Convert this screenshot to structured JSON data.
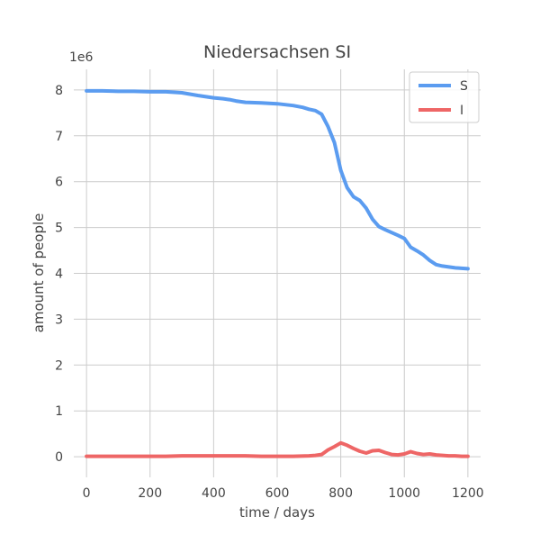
{
  "chart_data": {
    "type": "line",
    "title": "Niedersachsen SI",
    "xlabel": "time / days",
    "ylabel": "amount of people",
    "y_offset_label": "1e6",
    "xlim": [
      -40,
      1240
    ],
    "ylim": [
      -0.45,
      8.45
    ],
    "xticks": [
      0,
      200,
      400,
      600,
      800,
      1000,
      1200
    ],
    "yticks": [
      0,
      1,
      2,
      3,
      4,
      5,
      6,
      7,
      8
    ],
    "grid": true,
    "legend_position": "top-right",
    "series": [
      {
        "name": "S",
        "color": "#5b9cf0",
        "x": [
          0,
          50,
          100,
          150,
          200,
          250,
          300,
          350,
          400,
          430,
          450,
          470,
          500,
          550,
          600,
          650,
          680,
          700,
          720,
          740,
          760,
          780,
          800,
          820,
          840,
          860,
          880,
          900,
          920,
          940,
          960,
          980,
          1000,
          1020,
          1040,
          1060,
          1080,
          1100,
          1120,
          1140,
          1160,
          1180,
          1200
        ],
        "values": [
          7.98,
          7.98,
          7.97,
          7.97,
          7.96,
          7.96,
          7.94,
          7.88,
          7.83,
          7.81,
          7.79,
          7.76,
          7.73,
          7.72,
          7.7,
          7.66,
          7.62,
          7.58,
          7.55,
          7.47,
          7.2,
          6.85,
          6.25,
          5.87,
          5.67,
          5.59,
          5.42,
          5.18,
          5.02,
          4.95,
          4.89,
          4.83,
          4.76,
          4.57,
          4.49,
          4.4,
          4.28,
          4.19,
          4.16,
          4.14,
          4.12,
          4.11,
          4.1
        ]
      },
      {
        "name": "I",
        "color": "#ee6666",
        "x": [
          0,
          100,
          200,
          250,
          300,
          350,
          400,
          450,
          500,
          550,
          600,
          650,
          700,
          720,
          740,
          760,
          780,
          800,
          820,
          840,
          860,
          880,
          900,
          920,
          940,
          960,
          980,
          1000,
          1020,
          1040,
          1060,
          1080,
          1100,
          1120,
          1140,
          1160,
          1180,
          1200
        ],
        "values": [
          0.01,
          0.01,
          0.01,
          0.01,
          0.02,
          0.02,
          0.02,
          0.02,
          0.02,
          0.01,
          0.01,
          0.01,
          0.02,
          0.03,
          0.05,
          0.15,
          0.22,
          0.3,
          0.25,
          0.18,
          0.12,
          0.08,
          0.13,
          0.14,
          0.09,
          0.05,
          0.04,
          0.06,
          0.11,
          0.07,
          0.05,
          0.06,
          0.04,
          0.03,
          0.02,
          0.02,
          0.01,
          0.01
        ]
      }
    ]
  }
}
